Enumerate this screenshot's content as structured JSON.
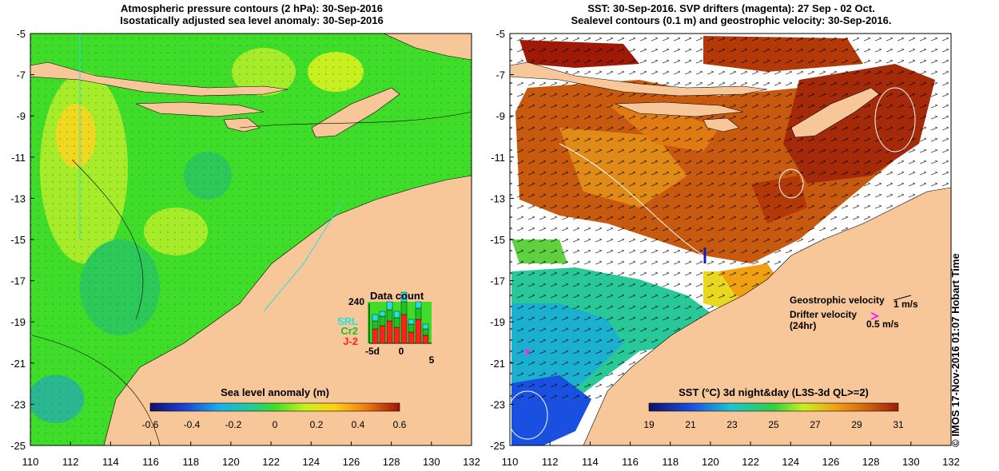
{
  "left_panel": {
    "title_line1": "Atmospheric pressure contours (2 hPa): 30-Sep-2016",
    "title_line2": "Isostatically adjusted sea level anomaly: 30-Sep-2016",
    "colorbar": {
      "label": "Sea level anomaly (m)",
      "ticks": [
        "-0.6",
        "-0.4",
        "-0.2",
        "0",
        "0.2",
        "0.4",
        "0.6"
      ]
    },
    "data_count": {
      "title": "Data count",
      "ymax_label": "240",
      "legend": [
        {
          "label": "SRL",
          "color": "#22e0e0"
        },
        {
          "label": "Cr2",
          "color": "#22c022"
        },
        {
          "label": "J-2",
          "color": "#ff2020"
        }
      ],
      "x_labels": [
        "-5d",
        "0",
        "5"
      ]
    }
  },
  "right_panel": {
    "title_line1": "SST: 30-Sep-2016. SVP drifters (magenta): 27 Sep - 02 Oct.",
    "title_line2": "Sealevel contours (0.1 m) and geostrophic velocity: 30-Sep-2016.",
    "geo_label": "Geostrophic velocity",
    "geo_scale": "1 m/s",
    "drifter_label_1": "Drifter velocity",
    "drifter_label_2": "(24hr)",
    "drifter_scale": "0.5 m/s",
    "colorbar": {
      "label": "SST (°C) 3d night&day (L3S-3d QL>=2)",
      "ticks": [
        "19",
        "21",
        "23",
        "25",
        "27",
        "29",
        "31"
      ]
    }
  },
  "axes": {
    "x_ticks": [
      "110",
      "112",
      "114",
      "116",
      "118",
      "120",
      "122",
      "124",
      "126",
      "128",
      "130",
      "132"
    ],
    "y_ticks": [
      "-5",
      "-7",
      "-9",
      "-11",
      "-13",
      "-15",
      "-17",
      "-19",
      "-21",
      "-23",
      "-25"
    ]
  },
  "stamp": "© IMOS 17-Nov-2016 01:07 Hobart Time",
  "colors": {
    "land": "#f7c79a",
    "ocean_green": "#3fdc2a",
    "sst_warm": "#c85a10",
    "sst_hot": "#9e1a06"
  }
}
